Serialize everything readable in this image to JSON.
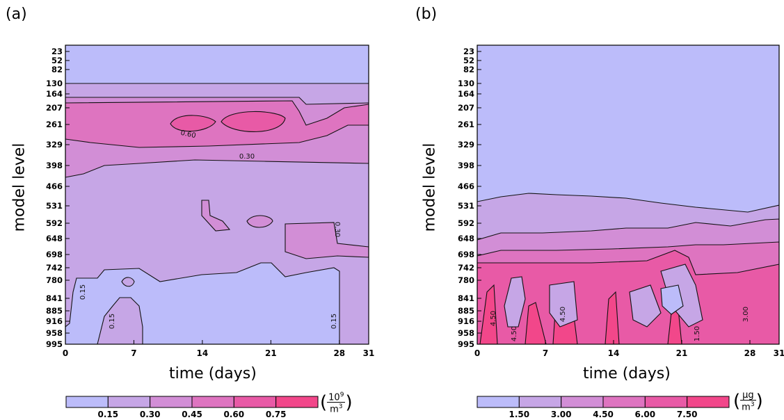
{
  "chart_data": [
    {
      "panel": "(a)",
      "type": "heatmap",
      "title": "",
      "xlabel": "time (days)",
      "ylabel": "model level",
      "x_ticks": [
        0,
        7,
        14,
        21,
        28,
        31
      ],
      "y_ticks": [
        "23",
        "52",
        "82",
        "130",
        "164",
        "207",
        "261",
        "329",
        "398",
        "466",
        "531",
        "592",
        "648",
        "698",
        "742",
        "780",
        "841",
        "885",
        "916",
        "958",
        "995"
      ],
      "xlim": [
        0,
        31
      ],
      "contour_labels": [
        "0.60",
        "0.30",
        "0.30",
        "0.15",
        "0.15",
        "0.15"
      ],
      "colorbar": {
        "levels": [
          "0.15",
          "0.30",
          "0.45",
          "0.60",
          "0.75"
        ],
        "colors": [
          "#bcbcfa",
          "#c6a6e6",
          "#d28ed6",
          "#de74c0",
          "#e85aa6",
          "#f2478a"
        ],
        "unit_num": "10",
        "unit_exp": "9",
        "unit_den": "m",
        "unit_den_exp": "3"
      }
    },
    {
      "panel": "(b)",
      "type": "heatmap",
      "title": "",
      "xlabel": "time (days)",
      "ylabel": "model level",
      "x_ticks": [
        0,
        7,
        14,
        21,
        28,
        31
      ],
      "y_ticks": [
        "23",
        "52",
        "82",
        "130",
        "164",
        "207",
        "261",
        "329",
        "398",
        "466",
        "531",
        "592",
        "648",
        "698",
        "742",
        "780",
        "841",
        "885",
        "916",
        "958",
        "995"
      ],
      "xlim": [
        0,
        31
      ],
      "contour_labels": [
        "4.50",
        "4.50",
        "4.50",
        "1.50",
        "3.00"
      ],
      "colorbar": {
        "levels": [
          "1.50",
          "3.00",
          "4.50",
          "6.00",
          "7.50"
        ],
        "colors": [
          "#bcbcfa",
          "#c6a6e6",
          "#d28ed6",
          "#de74c0",
          "#e85aa6",
          "#f2478a"
        ],
        "unit_num": "μg",
        "unit_den": "m",
        "unit_den_exp": "3"
      }
    }
  ]
}
